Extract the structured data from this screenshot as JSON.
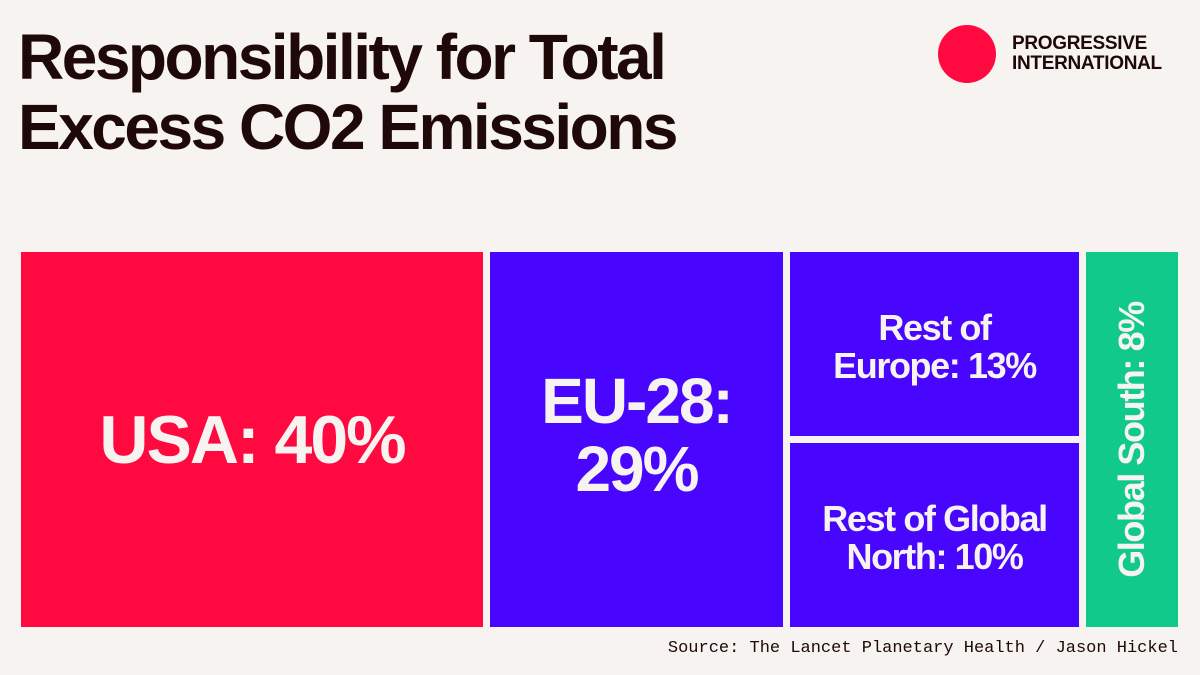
{
  "title_lines": [
    "Responsibility for Total",
    "Excess CO2 Emissions"
  ],
  "brand": {
    "name_lines": [
      "PROGRESSIVE",
      "INTERNATIONAL"
    ],
    "dot_color": "#ff0a40"
  },
  "source": "Source: The Lancet Planetary Health / Jason Hickel",
  "colors": {
    "background": "#f6f3f0",
    "red": "#ff0a40",
    "purple": "#4806ff",
    "green": "#12c98c",
    "text_on_tile": "#f6f3f0",
    "title": "#1e0808"
  },
  "chart_data": {
    "type": "treemap",
    "title": "Responsibility for Total Excess CO2 Emissions",
    "unit": "%",
    "items": [
      {
        "name": "USA",
        "value": 40,
        "label_lines": [
          "USA: 40%"
        ],
        "color": "#ff0a40"
      },
      {
        "name": "EU-28",
        "value": 29,
        "label_lines": [
          "EU-28:",
          "29%"
        ],
        "color": "#4806ff"
      },
      {
        "name": "Rest of Europe",
        "value": 13,
        "label_lines": [
          "Rest of",
          "Europe: 13%"
        ],
        "color": "#4806ff"
      },
      {
        "name": "Rest of Global North",
        "value": 10,
        "label_lines": [
          "Rest of Global",
          "North: 10%"
        ],
        "color": "#4806ff"
      },
      {
        "name": "Global South",
        "value": 8,
        "label_lines": [
          "Global South: 8%"
        ],
        "color": "#12c98c"
      }
    ],
    "legend": "none",
    "grid": false
  }
}
